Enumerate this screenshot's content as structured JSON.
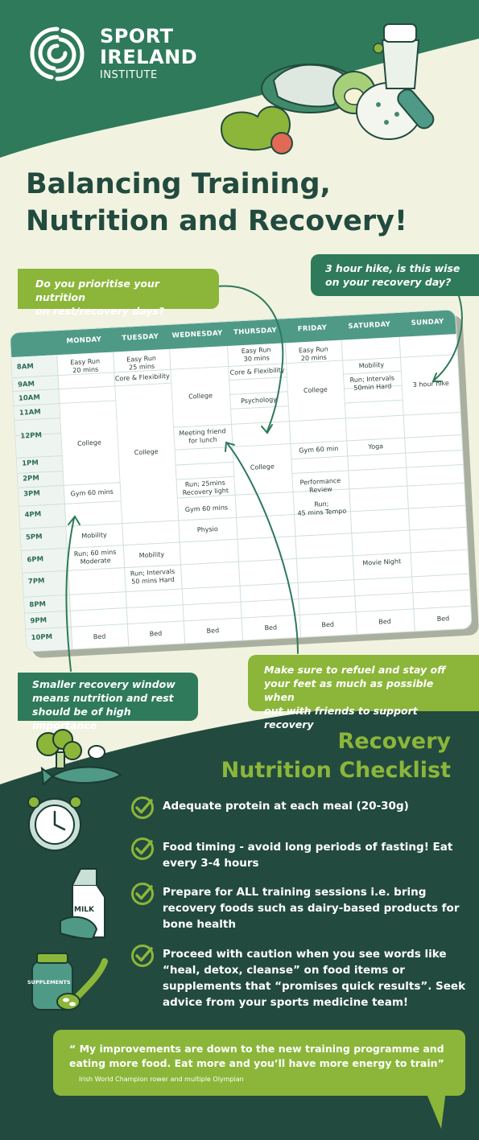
{
  "brand": {
    "line1": "SPORT",
    "line2": "IRELAND",
    "line3": "INSTITUTE",
    "colors": {
      "dark_green": "#234a3f",
      "mid_green": "#2e7a5b",
      "lime": "#8bb63a",
      "cream": "#f1f3e0"
    }
  },
  "title": {
    "line1": "Balancing Training,",
    "line2": "Nutrition and Recovery!"
  },
  "callouts": {
    "rest_days": {
      "line1": "Do you prioritise your nutrition",
      "line2": "on rest/recovery days?"
    },
    "hike": {
      "line1": "3 hour hike, is this wise",
      "line2": "on your recovery day?"
    },
    "window": {
      "line1": "Smaller recovery window",
      "line2": "means nutrition and rest",
      "line3": "should be of high importance"
    },
    "refuel": {
      "line1": "Make sure to refuel and stay off",
      "line2": "your feet as much as possible when",
      "line3": "out with friends to support recovery"
    }
  },
  "timetable": {
    "days": [
      "MONDAY",
      "TUESDAY",
      "WEDNESDAY",
      "THURSDAY",
      "FRIDAY",
      "SATURDAY",
      "SUNDAY"
    ],
    "times": [
      "8AM",
      "9AM",
      "10AM",
      "11AM",
      "12PM",
      "1PM",
      "2PM",
      "3PM",
      "4PM",
      "5PM",
      "6PM",
      "7PM",
      "8PM",
      "9PM",
      "10PM"
    ],
    "monday": {
      "run": "Easy Run\n20 mins",
      "college": "College",
      "gym": "Gym 60 mins",
      "mobility": "Mobility",
      "run2": "Run; 60 mins\nModerate",
      "bed": "Bed"
    },
    "tuesday": {
      "run": "Easy Run\n25 mins",
      "core": "Core & Flexibility",
      "college": "College",
      "mobility": "Mobility",
      "run2": "Run; Intervals\n50 mins Hard",
      "bed": "Bed"
    },
    "wednesday": {
      "college": "College",
      "meeting": "Meeting friend\nfor lunch",
      "run": "Run; 25mins\nRecovery light",
      "gym": "Gym 60 mins",
      "physio": "Physio",
      "bed": "Bed"
    },
    "thursday": {
      "run": "Easy Run\n30 mins",
      "core": "Core & Flexibility",
      "psych": "Psychology",
      "college": "College",
      "bed": "Bed"
    },
    "friday": {
      "run": "Easy Run\n20 mins",
      "college": "College",
      "gym": "Gym 60 min",
      "review": "Performance\nReview",
      "run2": "Run;\n45 mins Tempo",
      "bed": "Bed"
    },
    "saturday": {
      "mobility": "Mobility",
      "run": "Run; Intervals\n50min Hard",
      "yoga": "Yoga",
      "movie": "Movie Night",
      "bed": "Bed"
    },
    "sunday": {
      "hike": "3 hour hike",
      "bed": "Bed"
    }
  },
  "checklist": {
    "title_line1": "Recovery",
    "title_line2": "Nutrition Checklist",
    "items": [
      {
        "text": "Adequate protein at each meal (20-30g)"
      },
      {
        "text": "Food timing - avoid long periods of fasting! Eat every 3-4 hours"
      },
      {
        "text": "Prepare for ALL training sessions i.e. bring recovery foods such as dairy-based products for bone health"
      },
      {
        "text": "Proceed with caution when you see words like “heal, detox, cleanse” on food items or supplements that “promises quick results”. Seek advice from your sports medicine team!"
      }
    ],
    "art_labels": {
      "milk": "MILK",
      "supplements": "SUPPLEMENTS"
    }
  },
  "quote": {
    "text": "“ My improvements are down to the new training programme and eating more food. Eat more and you’ll have more energy to train”",
    "attribution": "Irish World Champion rower and multiple Olympian"
  }
}
